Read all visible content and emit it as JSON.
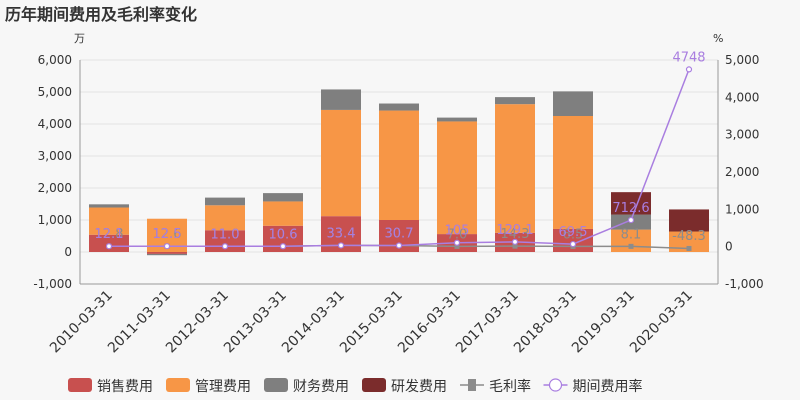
{
  "chart_data": {
    "type": "bar",
    "title": "历年期间费用及毛利率变化",
    "left_unit": "万",
    "right_unit": "%",
    "categories": [
      "2010-03-31",
      "2011-03-31",
      "2012-03-31",
      "2013-03-31",
      "2014-03-31",
      "2015-03-31",
      "2016-03-31",
      "2017-03-31",
      "2018-03-31",
      "2019-03-31",
      "2020-03-31"
    ],
    "ylim_left": [
      -1000,
      6000
    ],
    "yticks_left": [
      "-1,000",
      "0",
      "1,000",
      "2,000",
      "3,000",
      "4,000",
      "5,000",
      "6,000"
    ],
    "ylim_right": [
      -1000,
      5000
    ],
    "yticks_right": [
      "-1,000",
      "0",
      "1,000",
      "2,000",
      "3,000",
      "4,000",
      "5,000"
    ],
    "series": [
      {
        "name": "销售费用",
        "kind": "bar",
        "color": "#c8504f",
        "values": [
          540,
          -60,
          680,
          820,
          1120,
          1000,
          560,
          600,
          720,
          0,
          0
        ]
      },
      {
        "name": "管理费用",
        "kind": "bar",
        "color": "#f79646",
        "values": [
          850,
          1040,
          780,
          760,
          3320,
          3420,
          3520,
          4020,
          3530,
          700,
          640
        ]
      },
      {
        "name": "财务费用",
        "kind": "bar",
        "color": "#7f7f7f",
        "values": [
          100,
          -40,
          240,
          260,
          640,
          220,
          120,
          220,
          770,
          470,
          0
        ]
      },
      {
        "name": "研发费用",
        "kind": "bar",
        "color": "#7b2c2c",
        "values": [
          0,
          0,
          0,
          0,
          0,
          0,
          0,
          0,
          0,
          700,
          690
        ]
      },
      {
        "name": "毛利率",
        "kind": "line",
        "axis": "right",
        "color": "#8c8c8c",
        "values": [
          12.8,
          12.6,
          11.0,
          10.6,
          33.4,
          30.7,
          7.0,
          14.3,
          6.5,
          8.1,
          -48.3
        ],
        "labels": [
          "12.8",
          "12.6",
          "11.0",
          "10.6",
          "33.4",
          "30.7",
          "7.0",
          "14.3",
          "6.5",
          "8.1",
          "-48.3"
        ]
      },
      {
        "name": "期间费用率",
        "kind": "line",
        "axis": "right",
        "color": "#a97ee0",
        "values": [
          12.1,
          12.5,
          11.0,
          10.6,
          33.4,
          30.7,
          105,
          129.1,
          69.5,
          712.6,
          4748
        ],
        "labels": [
          "12.1",
          "12.5",
          "11.0",
          "10.6",
          "33.4",
          "30.7",
          "105",
          "129.1",
          "69.5",
          "712.6",
          "4748"
        ]
      }
    ],
    "legend_placement": "bottom",
    "grid": true
  }
}
